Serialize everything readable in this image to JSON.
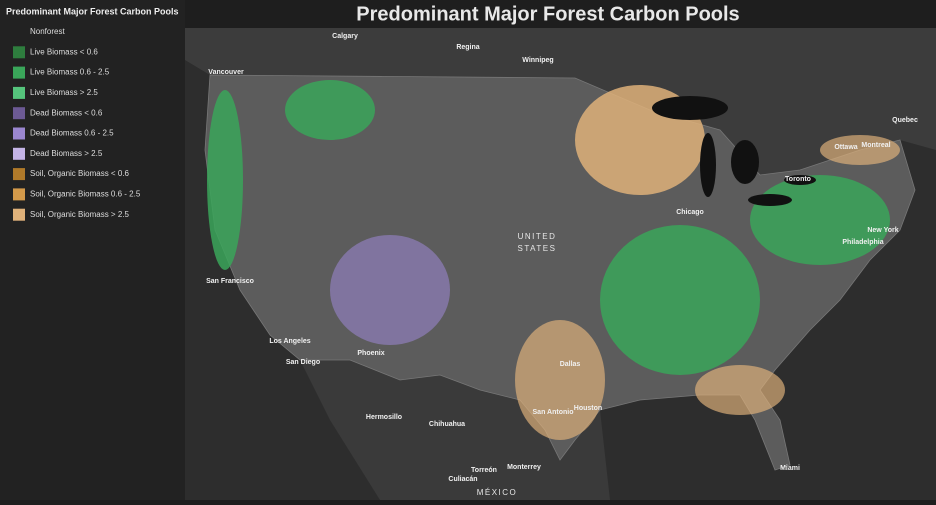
{
  "title": "Predominant Major Forest Carbon Pools",
  "legend": {
    "title": "Predominant Major Forest Carbon Pools",
    "items": [
      {
        "label": "Nonforest",
        "color": "transparent"
      },
      {
        "label": "Live Biomass < 0.6",
        "color": "#2e7d3e"
      },
      {
        "label": "Live Biomass 0.6 - 2.5",
        "color": "#3aa65a"
      },
      {
        "label": "Live Biomass > 2.5",
        "color": "#55c47c"
      },
      {
        "label": "Dead Biomass < 0.6",
        "color": "#6c5a94"
      },
      {
        "label": "Dead Biomass 0.6 - 2.5",
        "color": "#9a86cf"
      },
      {
        "label": "Dead Biomass > 2.5",
        "color": "#c4b4e6"
      },
      {
        "label": "Soil, Organic Biomass < 0.6",
        "color": "#b07a2a"
      },
      {
        "label": "Soil, Organic Biomass 0.6 - 2.5",
        "color": "#d49a4a"
      },
      {
        "label": "Soil, Organic Biomass > 2.5",
        "color": "#e0b27a"
      }
    ]
  },
  "places": [
    "Calgary",
    "Regina",
    "Winnipeg",
    "Vancouver",
    "Quebec",
    "Montreal",
    "Ottawa",
    "Toronto",
    "Chicago",
    "New York",
    "Philadelphia",
    "UNITED",
    "STATES",
    "San Francisco",
    "Los Angeles",
    "San Diego",
    "Phoenix",
    "Dallas",
    "Houston",
    "San Antonio",
    "Miami",
    "Hermosillo",
    "Chihuahua",
    "Torreón",
    "Monterrey",
    "Culiacán",
    "MÉXICO"
  ]
}
